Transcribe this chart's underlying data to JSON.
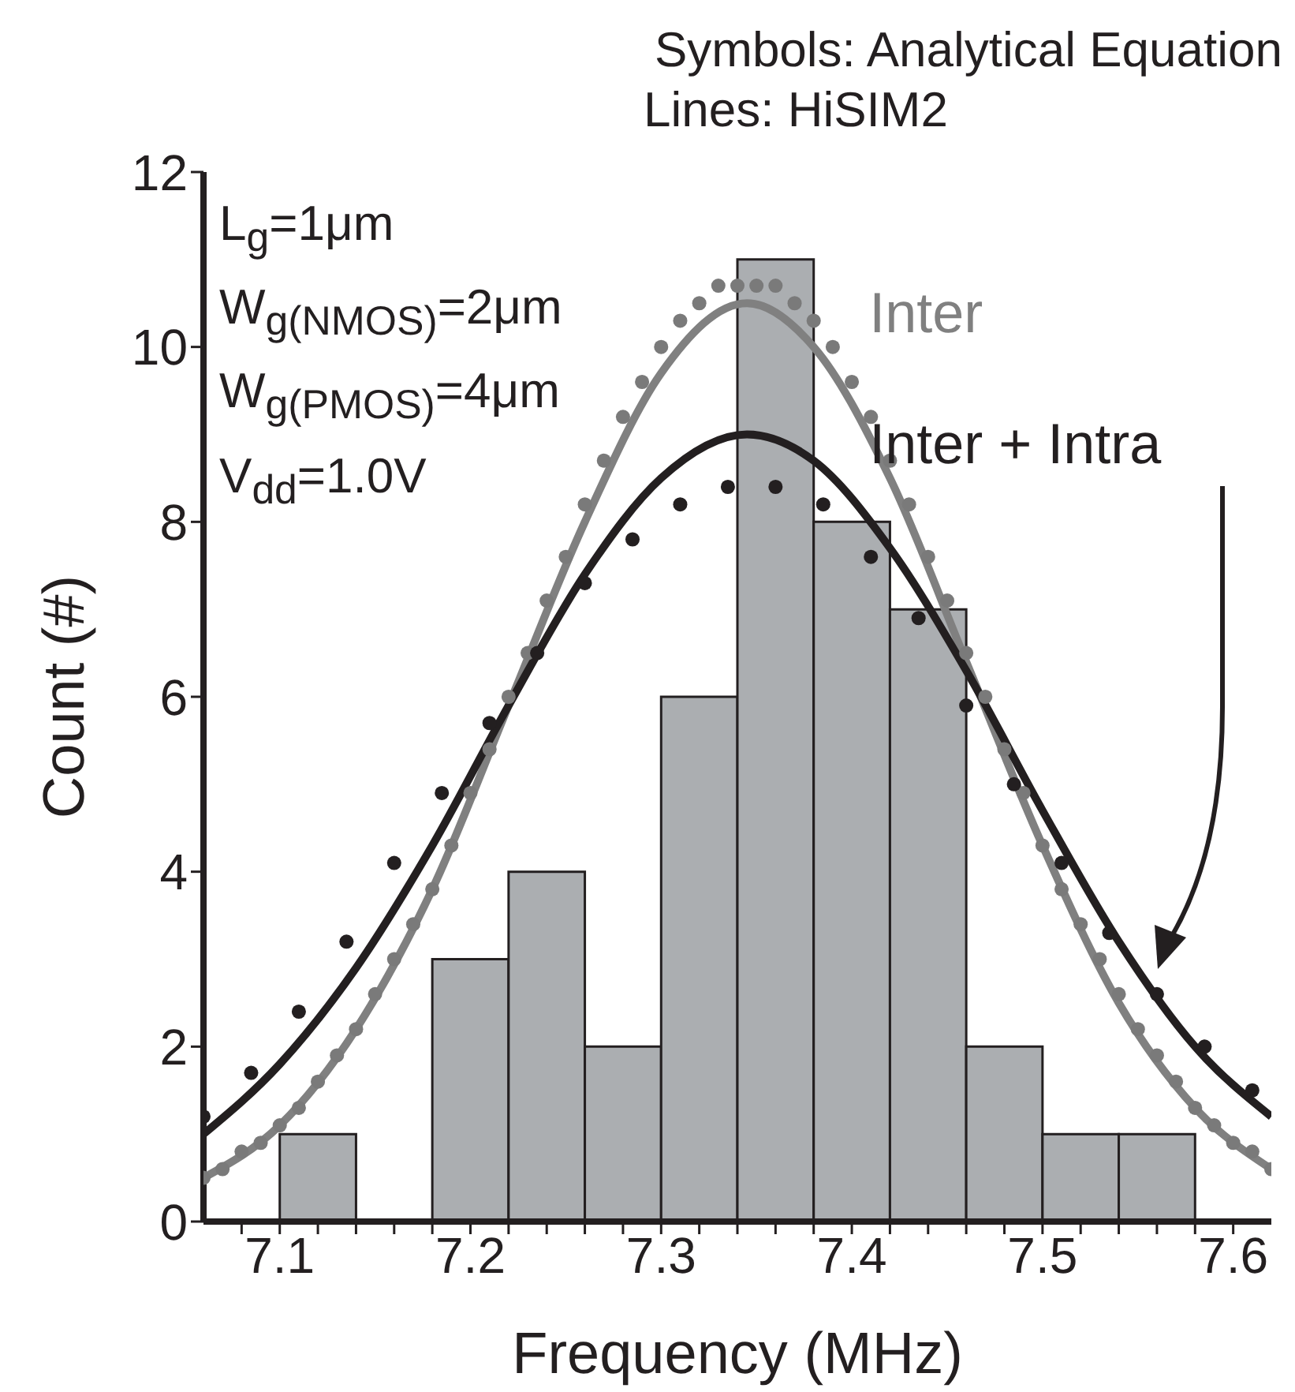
{
  "chart_data": {
    "type": "histogram",
    "title": "Symbols: Analytical Equation",
    "subtitle": "Lines: HiSIM2",
    "xlabel": "Frequency (MHz)",
    "ylabel": "Count (#)",
    "annotations": [
      "L$_{g}$=1μm",
      "W$_{g(NMOS)}$=2μm",
      "W$_{g(PMOS)}$=4μm",
      "V$_{dd}$=1.0V"
    ],
    "bins": [
      7.1,
      7.14,
      7.18,
      7.22,
      7.26,
      7.3,
      7.34,
      7.38,
      7.42,
      7.46,
      7.5,
      7.54,
      7.58
    ],
    "values": [
      1,
      0,
      3,
      4,
      2,
      6,
      11,
      8,
      7,
      2,
      1,
      1
    ],
    "color": "#abaeb1",
    "series": [
      {
        "type": "line",
        "name": "Inter",
        "color": "#808080",
        "marker": "none",
        "x": [
          7.06,
          7.1,
          7.14,
          7.18,
          7.22,
          7.26,
          7.3,
          7.345,
          7.38,
          7.42,
          7.46,
          7.5,
          7.54,
          7.58,
          7.62
        ],
        "values": [
          0.5,
          1.1,
          2.2,
          3.8,
          5.9,
          8.0,
          9.7,
          10.5,
          10.0,
          8.5,
          6.4,
          4.3,
          2.5,
          1.3,
          0.6
        ]
      },
      {
        "type": "scatter",
        "color": "#7a7a7a",
        "marker": "circle",
        "x": [
          7.06,
          7.07,
          7.08,
          7.09,
          7.1,
          7.11,
          7.12,
          7.13,
          7.14,
          7.15,
          7.16,
          7.17,
          7.18,
          7.19,
          7.2,
          7.21,
          7.22,
          7.23,
          7.24,
          7.25,
          7.26,
          7.27,
          7.28,
          7.29,
          7.3,
          7.31,
          7.32,
          7.33,
          7.34,
          7.35,
          7.36,
          7.37,
          7.38,
          7.39,
          7.4,
          7.41,
          7.42,
          7.43,
          7.44,
          7.45,
          7.46,
          7.47,
          7.48,
          7.49,
          7.5,
          7.51,
          7.52,
          7.53,
          7.54,
          7.55,
          7.56,
          7.57,
          7.58,
          7.59,
          7.6,
          7.61,
          7.62
        ],
        "values": [
          0.5,
          0.6,
          0.8,
          0.9,
          1.1,
          1.3,
          1.6,
          1.9,
          2.2,
          2.6,
          3.0,
          3.4,
          3.8,
          4.3,
          4.9,
          5.4,
          6.0,
          6.5,
          7.1,
          7.6,
          8.2,
          8.7,
          9.2,
          9.6,
          10.0,
          10.3,
          10.5,
          10.7,
          10.7,
          10.7,
          10.7,
          10.5,
          10.3,
          10.0,
          9.6,
          9.2,
          8.7,
          8.2,
          7.6,
          7.1,
          6.5,
          6.0,
          5.4,
          4.9,
          4.3,
          3.8,
          3.4,
          3.0,
          2.6,
          2.2,
          1.9,
          1.6,
          1.3,
          1.1,
          0.9,
          0.8,
          0.6
        ]
      },
      {
        "type": "line",
        "name": "Inter + Intra",
        "color": "#231f20",
        "marker": "none",
        "x": [
          7.06,
          7.1,
          7.14,
          7.18,
          7.22,
          7.26,
          7.3,
          7.345,
          7.38,
          7.42,
          7.46,
          7.5,
          7.54,
          7.58,
          7.62
        ],
        "values": [
          1.0,
          1.8,
          2.9,
          4.3,
          5.9,
          7.4,
          8.5,
          9.0,
          8.7,
          7.7,
          6.3,
          4.7,
          3.2,
          2.0,
          1.2
        ]
      },
      {
        "type": "scatter",
        "color": "#231f20",
        "marker": "circle",
        "x": [
          7.06,
          7.085,
          7.11,
          7.135,
          7.16,
          7.185,
          7.21,
          7.235,
          7.26,
          7.285,
          7.31,
          7.335,
          7.36,
          7.385,
          7.41,
          7.435,
          7.46,
          7.485,
          7.51,
          7.535,
          7.56,
          7.585,
          7.61
        ],
        "values": [
          1.2,
          1.7,
          2.4,
          3.2,
          4.1,
          4.9,
          5.7,
          6.5,
          7.3,
          7.8,
          8.2,
          8.4,
          8.4,
          8.2,
          7.6,
          6.9,
          5.9,
          5.0,
          4.1,
          3.3,
          2.6,
          2.0,
          1.5
        ]
      }
    ],
    "xlim": [
      7.06,
      7.62
    ],
    "xticks": [
      {
        "value": 7.08,
        "label": null
      },
      7.1,
      {
        "value": 7.12,
        "label": null
      },
      {
        "value": 7.14,
        "label": null
      },
      {
        "value": 7.16,
        "label": null
      },
      {
        "value": 7.18,
        "label": null
      },
      7.2,
      {
        "value": 7.22,
        "label": null
      },
      {
        "value": 7.24,
        "label": null
      },
      {
        "value": 7.26,
        "label": null
      },
      {
        "value": 7.28,
        "label": null
      },
      7.3,
      {
        "value": 7.32,
        "label": null
      },
      {
        "value": 7.34,
        "label": null
      },
      {
        "value": 7.36,
        "label": null
      },
      {
        "value": 7.38,
        "label": null
      },
      7.4,
      {
        "value": 7.42,
        "label": null
      },
      {
        "value": 7.44,
        "label": null
      },
      {
        "value": 7.46,
        "label": null
      },
      {
        "value": 7.48,
        "label": null
      },
      7.5,
      {
        "value": 7.52,
        "label": null
      },
      {
        "value": 7.54,
        "label": null
      },
      {
        "value": 7.56,
        "label": null
      },
      {
        "value": 7.58,
        "label": null
      },
      7.6
    ],
    "ylim": [
      0,
      12
    ],
    "yticks": [
      0,
      2,
      4,
      6,
      8,
      10,
      12
    ],
    "line_style": "solid"
  }
}
